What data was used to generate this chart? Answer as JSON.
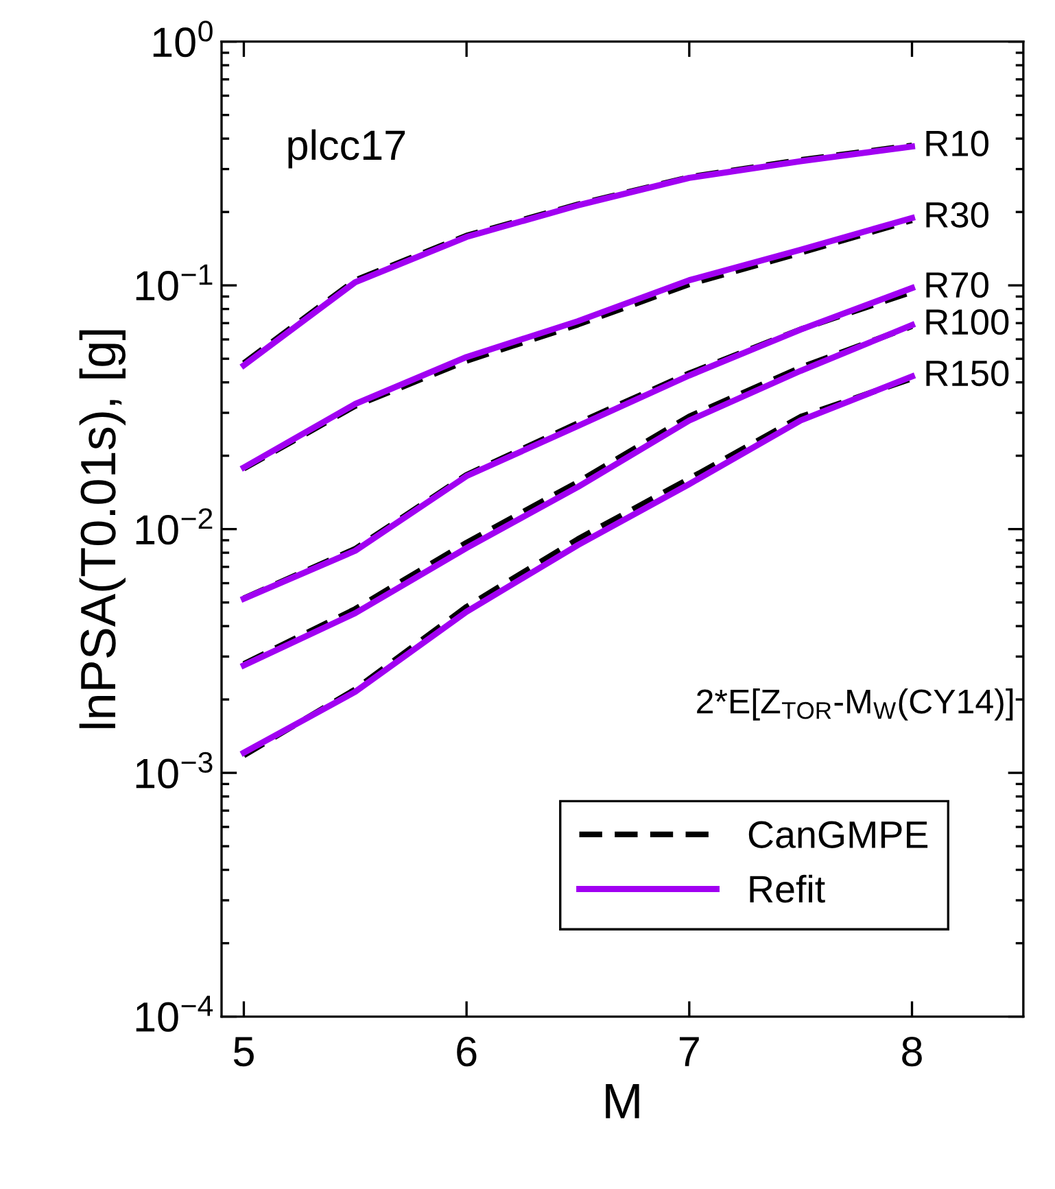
{
  "chart_data": {
    "type": "line",
    "xlabel": "M",
    "ylabel": "lnPSA(T0.01s), [g]",
    "log": "y",
    "xlim": [
      4.9,
      8.5
    ],
    "xticks": [
      5,
      6,
      7,
      8
    ],
    "ylim": [
      0.0001,
      1
    ],
    "yticks": [
      {
        "value": 0.0001,
        "label": "10$^{−4}$"
      },
      {
        "value": 0.001,
        "label": "10$^{−3}$"
      },
      {
        "value": 0.01,
        "label": "10$^{−2}$"
      },
      {
        "value": 0.1,
        "label": "10$^{−1}$"
      },
      {
        "value": 1,
        "label": "10$^{0}$"
      }
    ],
    "grid": false,
    "legend": "bottom right",
    "marker": "none",
    "x": [
      5,
      5.5,
      6,
      6.5,
      7,
      7.5,
      8
    ],
    "series": [
      {
        "name": "CanGMPE",
        "color": "#000000",
        "line_style": "dashed",
        "values": [
          0.048,
          0.105,
          0.16,
          0.215,
          0.278,
          0.327,
          0.375
        ]
      },
      {
        "color": "#000000",
        "line_style": "dashed",
        "values": [
          0.0177,
          0.032,
          0.049,
          0.069,
          0.101,
          0.136,
          0.185
        ]
      },
      {
        "color": "#000000",
        "line_style": "dashed",
        "values": [
          0.0052,
          0.0083,
          0.0167,
          0.0272,
          0.0436,
          0.066,
          0.094
        ]
      },
      {
        "color": "#000000",
        "line_style": "dashed",
        "values": [
          0.0028,
          0.0047,
          0.0088,
          0.0156,
          0.029,
          0.046,
          0.068
        ]
      },
      {
        "color": "#000000",
        "line_style": "dashed",
        "values": [
          0.00118,
          0.0022,
          0.0048,
          0.0091,
          0.0161,
          0.0289,
          0.0415
        ]
      },
      {
        "name": "Refit",
        "color": "#a100f2",
        "line_style": "solid",
        "values": [
          0.047,
          0.103,
          0.158,
          0.213,
          0.276,
          0.323,
          0.371
        ]
      },
      {
        "color": "#a100f2",
        "line_style": "solid",
        "values": [
          0.0179,
          0.0326,
          0.0508,
          0.0713,
          0.105,
          0.14,
          0.189
        ]
      },
      {
        "color": "#a100f2",
        "line_style": "solid",
        "values": [
          0.00518,
          0.00815,
          0.0165,
          0.0265,
          0.0427,
          0.0659,
          0.0975
        ]
      },
      {
        "color": "#a100f2",
        "line_style": "solid",
        "values": [
          0.00276,
          0.00452,
          0.00837,
          0.0149,
          0.0279,
          0.0446,
          0.0687
        ]
      },
      {
        "color": "#a100f2",
        "line_style": "solid",
        "values": [
          0.00121,
          0.00215,
          0.00458,
          0.0086,
          0.0153,
          0.0279,
          0.0423
        ]
      }
    ],
    "annotations": [
      "plcc17",
      "R10",
      "R30",
      "R70",
      "R100",
      "R150",
      "2*E[Z$_{TOR}$-M$_{W}$(CY14)]"
    ]
  }
}
